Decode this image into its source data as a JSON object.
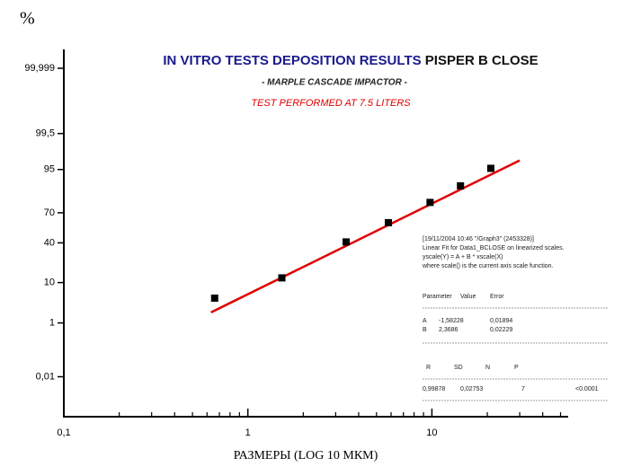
{
  "chart_data": {
    "type": "scatter",
    "y_unit_label": "%",
    "title": "IN VITRO TESTS DEPOSITION RESULTS",
    "title_suffix": "PISPER B CLOSE",
    "subtitle": "- MARPLE CASCADE IMPACTOR -",
    "subtitle2": "TEST PERFORMED AT 7.5 LITERS",
    "x_label": "РАЗМЕРЫ (LOG 10 МКМ)",
    "x_scale": "log",
    "y_scale": "probability",
    "xlim": [
      0.1,
      55
    ],
    "ylim": [
      0.0001,
      99.9999
    ],
    "xticks": [
      {
        "value": 0.1,
        "label": "0,1"
      },
      1,
      10
    ],
    "xminor_ticks": [
      0.2,
      0.3,
      0.4,
      0.5,
      0.6,
      0.7,
      0.8,
      0.9,
      2,
      3,
      4,
      5,
      6,
      7,
      8,
      9,
      20,
      30,
      40,
      50
    ],
    "yticks": [
      {
        "value": 0.01,
        "label": "0,01"
      },
      1,
      10,
      40,
      70,
      95,
      {
        "value": 99.5,
        "label": "99,5"
      },
      {
        "value": 99.999,
        "label": "99,999"
      }
    ],
    "series": [
      {
        "name": "Data1_BCLOSE",
        "color": "#000000",
        "x": [
          0.66,
          1.53,
          3.42,
          5.8,
          9.77,
          14.3,
          20.9
        ],
        "values": [
          4.6,
          12.3,
          40.9,
          60.6,
          78.6,
          88.9,
          95.3
        ]
      },
      {
        "name": "Linear Fit",
        "color": "#e00000",
        "x": [
          0.63,
          30
        ],
        "values": [
          2.0,
          97
        ]
      }
    ],
    "annotations": [
      "[19/11/2004 10:46 \"/Graph3\" (2453328)]",
      "Linear Fit for Data1_BCLOSE on linearized scales.",
      "yscale(Y) = A + B * xscale(X)",
      "where scale() is the current axis scale function."
    ],
    "fit_table": {
      "header1": [
        "Parameter",
        "Value",
        "Error"
      ],
      "rows1": [
        [
          "A",
          "-1,58228",
          "0,01894"
        ],
        [
          "B",
          "2,3686",
          "0,02229"
        ]
      ],
      "header2": [
        "R",
        "SD",
        "N",
        "P"
      ],
      "rows2": [
        [
          "0,99878",
          "0,02753",
          "7",
          "<0.0001"
        ]
      ]
    }
  }
}
